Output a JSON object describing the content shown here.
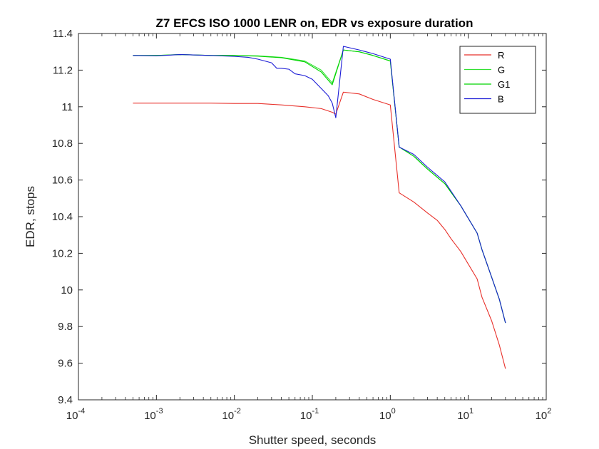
{
  "chart_data": {
    "type": "line",
    "title": "Z7 EFCS ISO 1000 LENR on, EDR vs exposure duration",
    "xlabel": "Shutter speed, seconds",
    "ylabel": "EDR, stops",
    "xscale": "log",
    "xlim": [
      0.0001,
      100
    ],
    "ylim": [
      9.4,
      11.4
    ],
    "xticks": [
      {
        "value": 0.0001,
        "base": "10",
        "exp": "-4"
      },
      {
        "value": 0.001,
        "base": "10",
        "exp": "-3"
      },
      {
        "value": 0.01,
        "base": "10",
        "exp": "-2"
      },
      {
        "value": 0.1,
        "base": "10",
        "exp": "-1"
      },
      {
        "value": 1,
        "base": "10",
        "exp": "0"
      },
      {
        "value": 10,
        "base": "10",
        "exp": "1"
      },
      {
        "value": 100,
        "base": "10",
        "exp": "2"
      }
    ],
    "yticks": [
      {
        "value": 9.4,
        "label": "9.4"
      },
      {
        "value": 9.6,
        "label": "9.6"
      },
      {
        "value": 9.8,
        "label": "9.8"
      },
      {
        "value": 10,
        "label": "10"
      },
      {
        "value": 10.2,
        "label": "10.2"
      },
      {
        "value": 10.4,
        "label": "10.4"
      },
      {
        "value": 10.6,
        "label": "10.6"
      },
      {
        "value": 10.8,
        "label": "10.8"
      },
      {
        "value": 11,
        "label": "11"
      },
      {
        "value": 11.2,
        "label": "11.2"
      },
      {
        "value": 11.4,
        "label": "11.4"
      }
    ],
    "grid": false,
    "legend_position": "top-right",
    "series": [
      {
        "name": "R",
        "color": "#e8312b",
        "points": [
          [
            0.0005,
            11.02
          ],
          [
            0.001,
            11.02
          ],
          [
            0.002,
            11.02
          ],
          [
            0.005,
            11.02
          ],
          [
            0.01,
            11.018
          ],
          [
            0.02,
            11.018
          ],
          [
            0.04,
            11.01
          ],
          [
            0.08,
            11.0
          ],
          [
            0.13,
            10.99
          ],
          [
            0.18,
            10.97
          ],
          [
            0.2,
            10.96
          ],
          [
            0.25,
            11.08
          ],
          [
            0.4,
            11.07
          ],
          [
            0.6,
            11.04
          ],
          [
            1.0,
            11.01
          ],
          [
            1.3,
            10.53
          ],
          [
            2.0,
            10.48
          ],
          [
            3.0,
            10.42
          ],
          [
            4.0,
            10.38
          ],
          [
            5.0,
            10.33
          ],
          [
            6.0,
            10.28
          ],
          [
            8.0,
            10.21
          ],
          [
            13.0,
            10.06
          ],
          [
            15.0,
            9.96
          ],
          [
            20.0,
            9.83
          ],
          [
            25.0,
            9.7
          ],
          [
            30.0,
            9.57
          ]
        ]
      },
      {
        "name": "G",
        "color": "#33e033",
        "points": [
          [
            0.0005,
            11.28
          ],
          [
            0.001,
            11.28
          ],
          [
            0.002,
            11.285
          ],
          [
            0.005,
            11.28
          ],
          [
            0.01,
            11.28
          ],
          [
            0.02,
            11.278
          ],
          [
            0.04,
            11.27
          ],
          [
            0.08,
            11.25
          ],
          [
            0.13,
            11.2
          ],
          [
            0.18,
            11.13
          ],
          [
            0.25,
            11.31
          ],
          [
            0.4,
            11.3
          ],
          [
            0.6,
            11.28
          ],
          [
            1.0,
            11.25
          ],
          [
            1.3,
            10.78
          ],
          [
            2.0,
            10.73
          ],
          [
            3.0,
            10.66
          ],
          [
            5.0,
            10.58
          ],
          [
            8.0,
            10.46
          ],
          [
            13.0,
            10.31
          ],
          [
            15.0,
            10.22
          ],
          [
            25.0,
            9.95
          ],
          [
            30.0,
            9.82
          ]
        ]
      },
      {
        "name": "G1",
        "color": "#00d400",
        "points": [
          [
            0.0005,
            11.28
          ],
          [
            0.001,
            11.28
          ],
          [
            0.002,
            11.285
          ],
          [
            0.005,
            11.28
          ],
          [
            0.01,
            11.28
          ],
          [
            0.02,
            11.276
          ],
          [
            0.04,
            11.268
          ],
          [
            0.08,
            11.245
          ],
          [
            0.13,
            11.19
          ],
          [
            0.18,
            11.12
          ],
          [
            0.25,
            11.31
          ],
          [
            0.4,
            11.3
          ],
          [
            0.6,
            11.28
          ],
          [
            1.0,
            11.25
          ],
          [
            1.3,
            10.78
          ],
          [
            2.0,
            10.73
          ],
          [
            3.0,
            10.66
          ],
          [
            5.0,
            10.58
          ],
          [
            8.0,
            10.46
          ],
          [
            13.0,
            10.31
          ],
          [
            15.0,
            10.22
          ],
          [
            25.0,
            9.95
          ],
          [
            30.0,
            9.82
          ]
        ]
      },
      {
        "name": "B",
        "color": "#1c1cd6",
        "points": [
          [
            0.0005,
            11.28
          ],
          [
            0.001,
            11.278
          ],
          [
            0.002,
            11.285
          ],
          [
            0.005,
            11.28
          ],
          [
            0.01,
            11.275
          ],
          [
            0.015,
            11.27
          ],
          [
            0.02,
            11.26
          ],
          [
            0.03,
            11.24
          ],
          [
            0.035,
            11.21
          ],
          [
            0.04,
            11.21
          ],
          [
            0.05,
            11.205
          ],
          [
            0.06,
            11.18
          ],
          [
            0.08,
            11.17
          ],
          [
            0.1,
            11.15
          ],
          [
            0.13,
            11.1
          ],
          [
            0.16,
            11.06
          ],
          [
            0.18,
            11.02
          ],
          [
            0.2,
            10.94
          ],
          [
            0.25,
            11.33
          ],
          [
            0.4,
            11.31
          ],
          [
            0.6,
            11.29
          ],
          [
            1.0,
            11.26
          ],
          [
            1.3,
            10.78
          ],
          [
            2.0,
            10.74
          ],
          [
            3.0,
            10.67
          ],
          [
            5.0,
            10.59
          ],
          [
            8.0,
            10.46
          ],
          [
            13.0,
            10.31
          ],
          [
            15.0,
            10.22
          ],
          [
            25.0,
            9.95
          ],
          [
            30.0,
            9.82
          ]
        ]
      }
    ]
  }
}
